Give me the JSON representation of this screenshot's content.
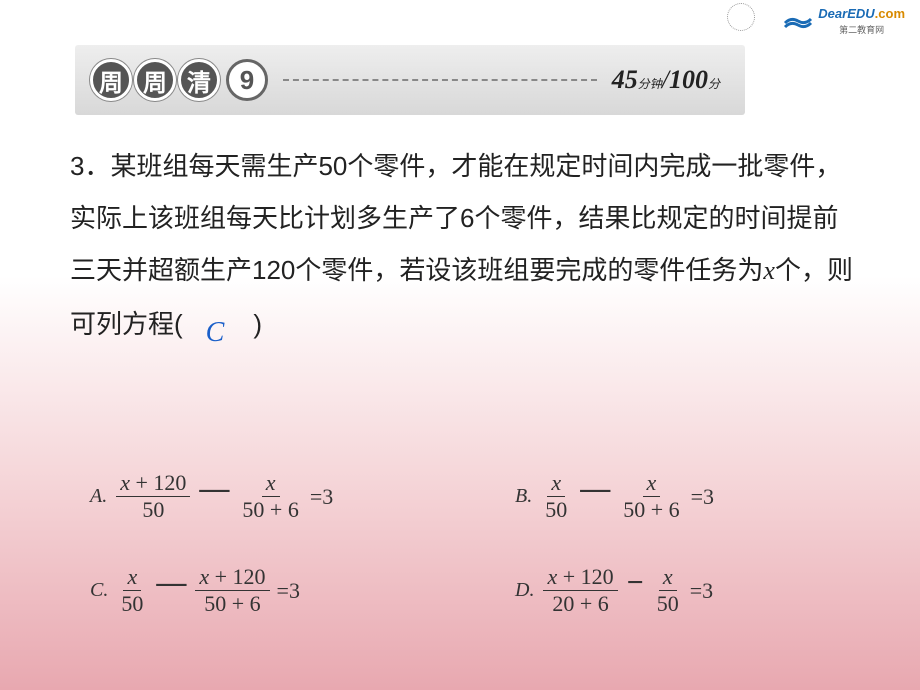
{
  "logo": {
    "brand": "DearEDU",
    "tld": ".com",
    "subtitle": "第二教育网",
    "icon_color": "#1a6bb5"
  },
  "header": {
    "chars": [
      "周",
      "周",
      "清"
    ],
    "number": "9",
    "time_num": "45",
    "time_unit": "分钟",
    "score_num": "100",
    "score_unit": "分"
  },
  "question": {
    "number": "3．",
    "text_parts": [
      "某班组每天需生产50个零件，才能在规定时间内完成一批零件，实际上该班组每天比计划多生产了6个零件，结果比规定的时间提前三天并超额生产120个零件，若设该班组要完成的零件任务为x个，则可列方程(　　)"
    ],
    "answer": "C"
  },
  "options": {
    "A": {
      "label": "A.",
      "f1_num": "x + 120",
      "f1_den": "50",
      "f2_num": "x",
      "f2_den": "50 + 6",
      "rhs": "=3"
    },
    "B": {
      "label": "B.",
      "f1_num": "x",
      "f1_den": "50",
      "f2_num": "x",
      "f2_den": "50 + 6",
      "rhs": "=3"
    },
    "C": {
      "label": "C.",
      "f1_num": "x",
      "f1_den": "50",
      "f2_num": "x + 120",
      "f2_den": "50 + 6",
      "rhs": "=3"
    },
    "D": {
      "label": "D.",
      "f1_num": "x + 120",
      "f1_den": "20 + 6",
      "f2_num": "x",
      "f2_den": "50",
      "rhs": "=3"
    }
  },
  "colors": {
    "answer": "#1a5fc9",
    "bg_gradient_end": "#e8a8b0"
  }
}
